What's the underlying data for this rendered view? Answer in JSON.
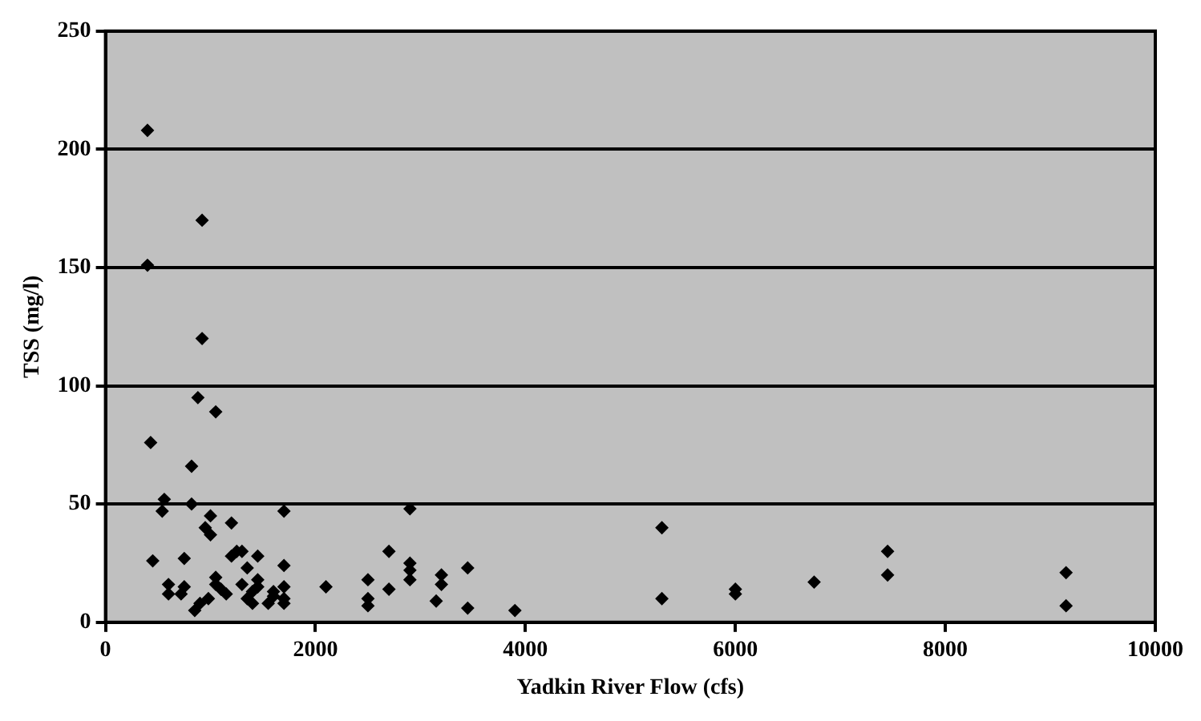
{
  "chart_data": {
    "type": "scatter",
    "xlabel": "Yadkin River Flow (cfs)",
    "ylabel": "TSS (mg/l)",
    "xlim": [
      0,
      10000
    ],
    "xticks": [
      0,
      2000,
      4000,
      6000,
      8000,
      10000
    ],
    "ylim": [
      0,
      250
    ],
    "yticks": [
      0,
      50,
      100,
      150,
      200,
      250
    ],
    "grid": "y",
    "marker": "diamond",
    "series": [
      {
        "color": "#000000",
        "x": [
          400,
          400,
          920,
          920,
          880,
          1050,
          430,
          820,
          560,
          540,
          820,
          1700,
          2900,
          5300,
          7450,
          9150,
          7450,
          6750,
          6000,
          6000,
          5300,
          9150,
          3900,
          3450,
          3450,
          3200,
          3200,
          3150,
          2900,
          2900,
          2900,
          2700,
          2700,
          2500,
          2500,
          2500,
          2100,
          1700,
          1700,
          1700,
          1700,
          1600,
          1450,
          1450,
          1400,
          1350,
          1350,
          1300,
          1300,
          1200,
          1200,
          1150,
          1000,
          1000,
          950,
          1050,
          1050,
          900,
          850,
          750,
          750,
          720,
          600,
          600,
          450,
          980,
          1550,
          1450,
          1250,
          1600,
          1400,
          1100
        ],
        "values": [
          208,
          151,
          170,
          120,
          95,
          89,
          76,
          66,
          52,
          47,
          50,
          47,
          48,
          40,
          30,
          21,
          20,
          17,
          14,
          12,
          10,
          7,
          5,
          23,
          6,
          20,
          16,
          9,
          25,
          22,
          18,
          30,
          14,
          18,
          10,
          7,
          15,
          24,
          15,
          10,
          8,
          13,
          28,
          18,
          13,
          23,
          10,
          30,
          16,
          42,
          28,
          12,
          45,
          37,
          40,
          19,
          16,
          8,
          5,
          27,
          15,
          12,
          16,
          12,
          26,
          10,
          8,
          15,
          30,
          11,
          8,
          14
        ]
      }
    ]
  }
}
